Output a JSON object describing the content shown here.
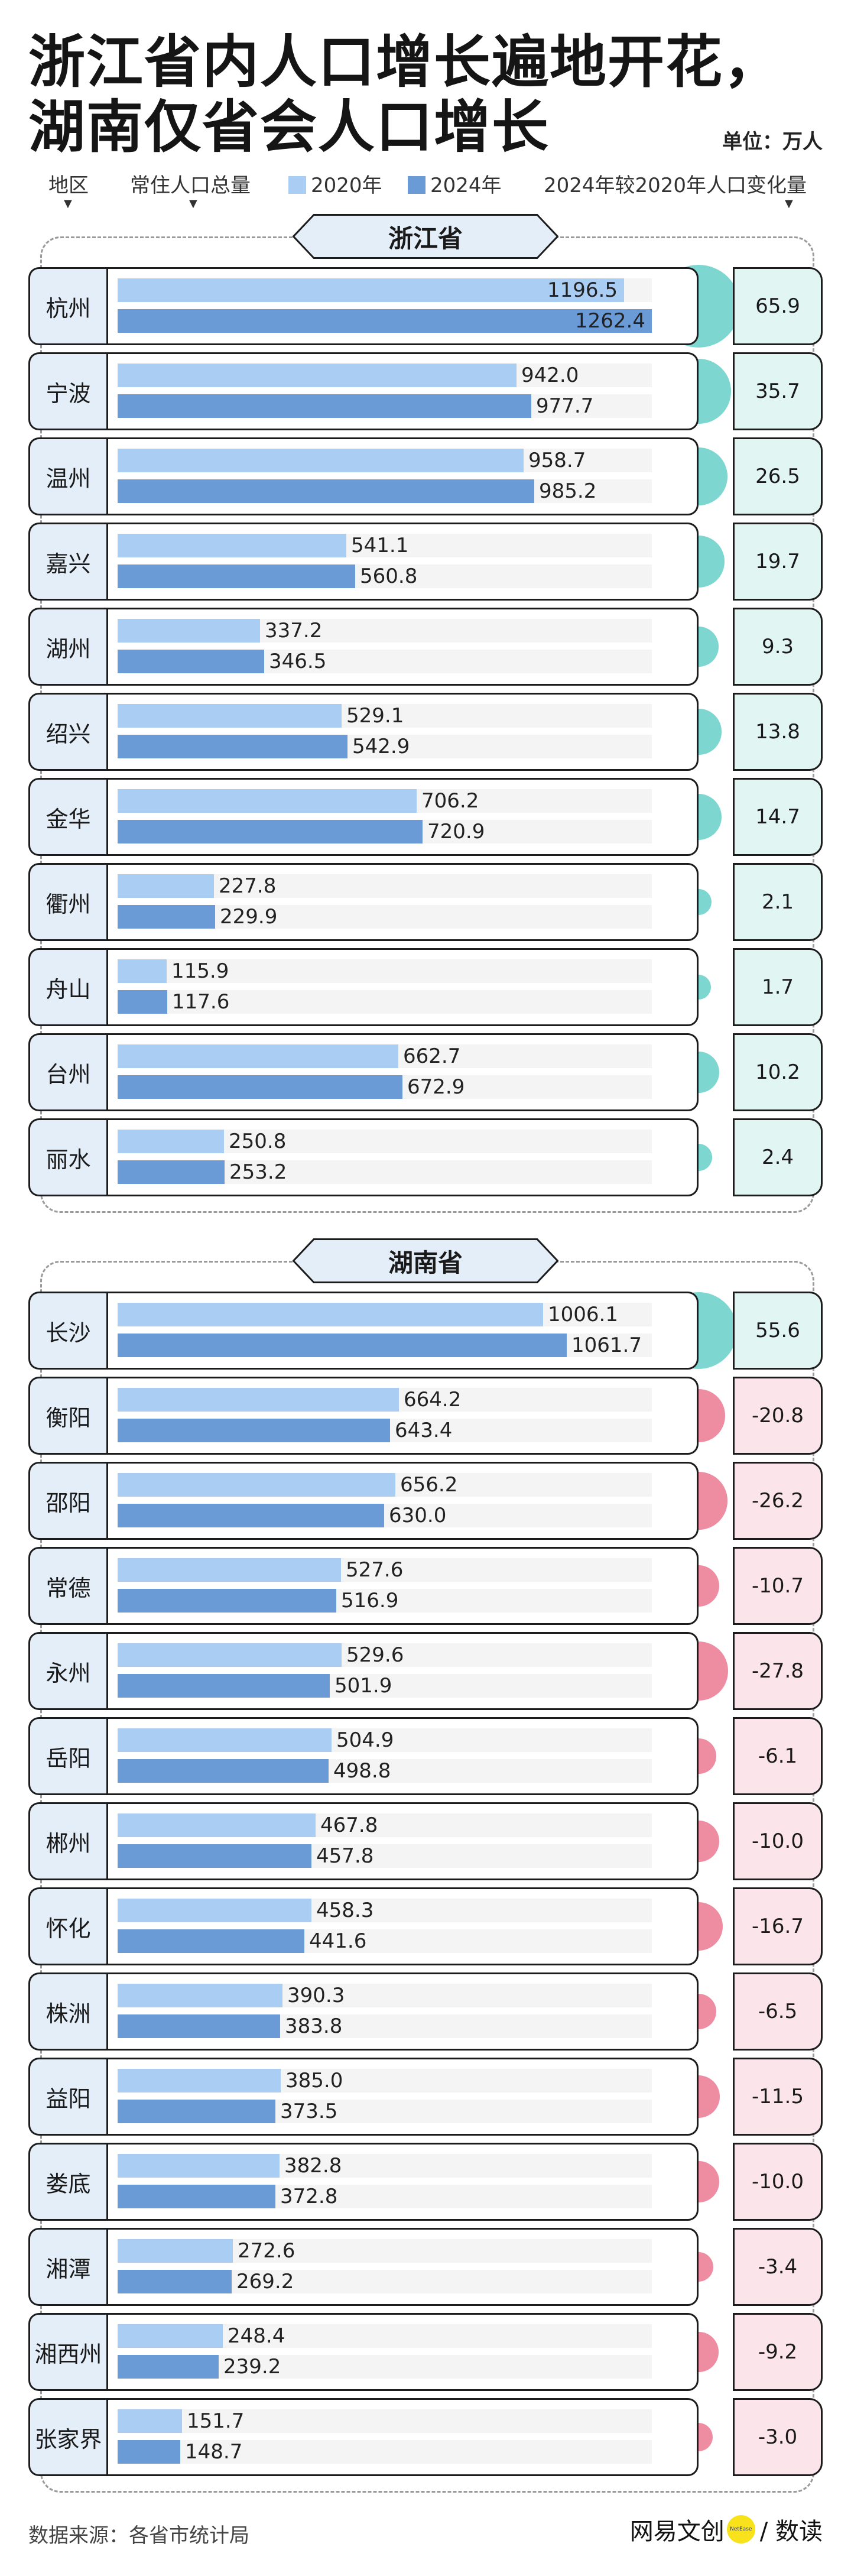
{
  "header": {
    "title_line1": "浙江省内人口增长遍地开花，",
    "title_line2": "湖南仅省会人口增长",
    "unit": "单位：万人",
    "col_region": "地区",
    "col_total": "常住人口总量",
    "legend_2020": "2020年",
    "legend_2024": "2024年",
    "col_change": "2024年较2020年人口变化量",
    "arrow": "▼"
  },
  "colors": {
    "bar_2020": "#aacdf4",
    "bar_2024": "#6b9bd6",
    "positive": "#7dd6d0",
    "negative": "#ee8da2",
    "label_bg": "#e4eef9"
  },
  "footer": {
    "source": "数据来源：各省市统计局",
    "brand_left": "网易文创",
    "brand_dot": "NetEase",
    "brand_right": "/ 数读"
  },
  "chart_data": {
    "type": "bar",
    "title": "浙江省内人口增长遍地开花，湖南仅省会人口增长",
    "unit": "万人",
    "series_names": [
      "2020年",
      "2024年",
      "2024年较2020年人口变化量"
    ],
    "xlim": [
      0,
      1262.4
    ],
    "groups": [
      {
        "province": "浙江省",
        "cities": [
          {
            "name": "杭州",
            "v2020": 1196.5,
            "v2024": 1262.4,
            "change": "65.9"
          },
          {
            "name": "宁波",
            "v2020": 942.0,
            "v2024": 977.7,
            "change": "35.7"
          },
          {
            "name": "温州",
            "v2020": 958.7,
            "v2024": 985.2,
            "change": "26.5"
          },
          {
            "name": "嘉兴",
            "v2020": 541.1,
            "v2024": 560.8,
            "change": "19.7"
          },
          {
            "name": "湖州",
            "v2020": 337.2,
            "v2024": 346.5,
            "change": "9.3"
          },
          {
            "name": "绍兴",
            "v2020": 529.1,
            "v2024": 542.9,
            "change": "13.8"
          },
          {
            "name": "金华",
            "v2020": 706.2,
            "v2024": 720.9,
            "change": "14.7"
          },
          {
            "name": "衢州",
            "v2020": 227.8,
            "v2024": 229.9,
            "change": "2.1"
          },
          {
            "name": "舟山",
            "v2020": 115.9,
            "v2024": 117.6,
            "change": "1.7"
          },
          {
            "name": "台州",
            "v2020": 662.7,
            "v2024": 672.9,
            "change": "10.2"
          },
          {
            "name": "丽水",
            "v2020": 250.8,
            "v2024": 253.2,
            "change": "2.4"
          }
        ]
      },
      {
        "province": "湖南省",
        "cities": [
          {
            "name": "长沙",
            "v2020": 1006.1,
            "v2024": 1061.7,
            "change": "55.6"
          },
          {
            "name": "衡阳",
            "v2020": 664.2,
            "v2024": 643.4,
            "change": "-20.8"
          },
          {
            "name": "邵阳",
            "v2020": 656.2,
            "v2024": 630.0,
            "change": "-26.2"
          },
          {
            "name": "常德",
            "v2020": 527.6,
            "v2024": 516.9,
            "change": "-10.7"
          },
          {
            "name": "永州",
            "v2020": 529.6,
            "v2024": 501.9,
            "change": "-27.8"
          },
          {
            "name": "岳阳",
            "v2020": 504.9,
            "v2024": 498.8,
            "change": "-6.1"
          },
          {
            "name": "郴州",
            "v2020": 467.8,
            "v2024": 457.8,
            "change": "-10.0"
          },
          {
            "name": "怀化",
            "v2020": 458.3,
            "v2024": 441.6,
            "change": "-16.7"
          },
          {
            "name": "株洲",
            "v2020": 390.3,
            "v2024": 383.8,
            "change": "-6.5"
          },
          {
            "name": "益阳",
            "v2020": 385.0,
            "v2024": 373.5,
            "change": "-11.5"
          },
          {
            "name": "娄底",
            "v2020": 382.8,
            "v2024": 372.8,
            "change": "-10.0"
          },
          {
            "name": "湘潭",
            "v2020": 272.6,
            "v2024": 269.2,
            "change": "-3.4"
          },
          {
            "name": "湘西州",
            "v2020": 248.4,
            "v2024": 239.2,
            "change": "-9.2"
          },
          {
            "name": "张家界",
            "v2020": 151.7,
            "v2024": 148.7,
            "change": "-3.0"
          }
        ]
      }
    ]
  }
}
